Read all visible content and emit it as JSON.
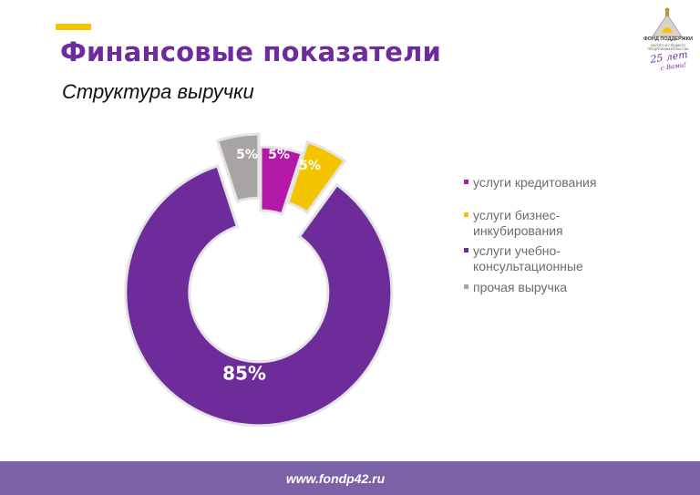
{
  "page": {
    "title": "Финансовые показатели",
    "subtitle": "Структура выручки",
    "footer_url": "www.fondp42.ru"
  },
  "logo": {
    "main_text": "ФОНД ПОДДЕРЖКИ",
    "sub_text": "МАЛОГО И СРЕДНЕГО ПРЕДПРИНИМАТЕЛЬСТВА",
    "years": "25 лет",
    "with_you": "с Вами!"
  },
  "colors": {
    "title": "#6e2c9a",
    "accent": "#f5c400",
    "footer": "#7b61a6"
  },
  "chart_data": {
    "type": "pie",
    "style": "donut",
    "legend_position": "right",
    "slices": [
      {
        "name": "услуги кредитования",
        "value": 5,
        "label": "5%",
        "color": "#b319a6",
        "exploded": false
      },
      {
        "name": "услуги бизнес-инкубирования",
        "value": 5,
        "label": "5%",
        "color": "#f5c400",
        "exploded": true
      },
      {
        "name": "услуги учебно-консультационные",
        "value": 85,
        "label": "85%",
        "color": "#6e2c9a",
        "exploded": true
      },
      {
        "name": "прочая выручка",
        "value": 5,
        "label": "5%",
        "color": "#a8a4a4",
        "exploded": true
      }
    ],
    "legend": [
      {
        "lines": [
          "услуги кредитования"
        ],
        "color": "#b319a6"
      },
      {
        "lines": [
          "услуги бизнес-",
          "инкубирования"
        ],
        "color": "#f5c400"
      },
      {
        "lines": [
          "услуги учебно-",
          "консультационные"
        ],
        "color": "#6e2c9a"
      },
      {
        "lines": [
          "прочая выручка"
        ],
        "color": "#a8a4a4"
      }
    ]
  }
}
